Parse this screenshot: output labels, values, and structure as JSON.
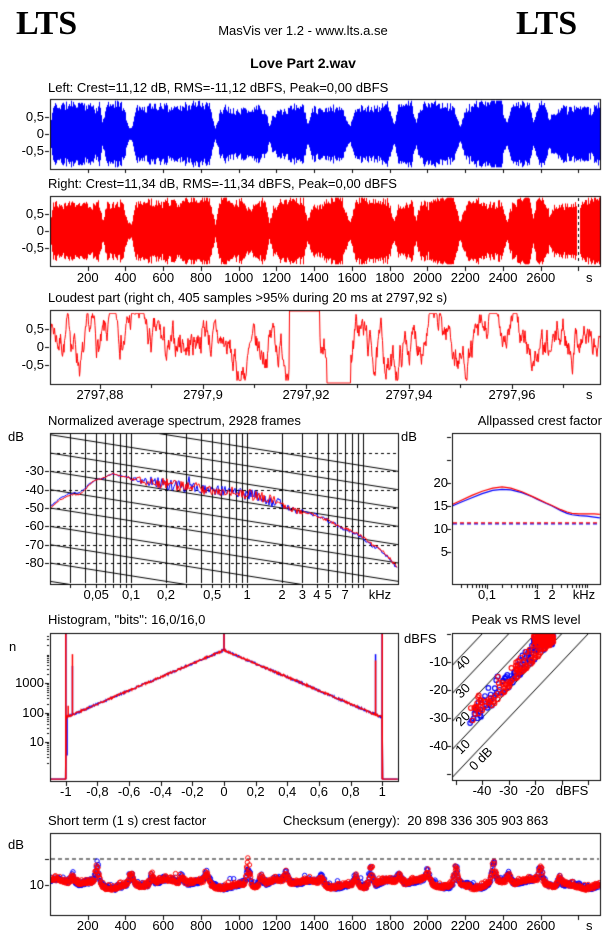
{
  "header": {
    "logo_left": "LTS",
    "logo_right": "LTS",
    "app_info": "MasVis ver 1.2 - www.lts.a.se",
    "title": "Love Part 2.wav"
  },
  "colors": {
    "left_channel": "#0000ff",
    "right_channel": "#ff0000",
    "axis": "#000000",
    "background": "#ffffff"
  },
  "units": {
    "db": "dB",
    "n": "n",
    "dbfs": "dBFS",
    "s": "s",
    "khz": "kHz"
  },
  "sections": {
    "left_wave": {
      "label": "Left: Crest=11,12 dB, RMS=-11,12 dBFS, Peak=0,00 dBFS"
    },
    "right_wave": {
      "label": "Right: Crest=11,34 dB, RMS=-11,34 dBFS, Peak=0,00 dBFS"
    },
    "loudest": {
      "title": "Loudest part (right ch, 405 samples >95% during 20 ms at 2797,92 s)"
    },
    "spectrum": {
      "title": "Normalized average spectrum, 2928 frames"
    },
    "allpassed": {
      "title": "Allpassed crest factor"
    },
    "histogram": {
      "title": "Histogram, \"bits\": 16,0/16,0"
    },
    "peak_rms": {
      "title": "Peak vs RMS level"
    },
    "short_term": {
      "title": "Short term (1 s) crest factor",
      "checksum": "Checksum (energy):  20 898 336 305 903 863"
    }
  },
  "axes": {
    "time": {
      "ticks": [
        200,
        400,
        600,
        800,
        1000,
        1200,
        1400,
        1600,
        1800,
        2000,
        2200,
        2400,
        2600
      ],
      "labels": [
        "200",
        "400",
        "600",
        "800",
        "1000",
        "1200",
        "1400",
        "1600",
        "1800",
        "2000",
        "2200",
        "2400",
        "2600"
      ],
      "extra_ticks": [
        2800
      ],
      "unit": "s",
      "max_s": 2914
    },
    "wave_y": {
      "ticks": [
        0.5,
        0,
        -0.5
      ],
      "labels": [
        "0,5",
        "0",
        "-0,5"
      ]
    },
    "loudest_x": {
      "ticks": [
        2797.88,
        2797.9,
        2797.92,
        2797.94,
        2797.96
      ],
      "labels": [
        "2797,88",
        "2797,9",
        "2797,92",
        "2797,94",
        "2797,96"
      ],
      "minor_step_s": 0.01,
      "unit": "s"
    },
    "spectrum_y": {
      "ticks": [
        -30,
        -40,
        -50,
        -60,
        -70,
        -80
      ],
      "labels": [
        "-30",
        "-40",
        "-50",
        "-60",
        "-70",
        "-80"
      ],
      "dashed_lines": [
        -20,
        -30,
        -40,
        -50,
        -60,
        -70,
        -80
      ]
    },
    "spectrum_x": {
      "ticks": [
        0.05,
        0.1,
        0.2,
        0.5,
        1,
        2,
        3,
        4,
        5,
        7
      ],
      "labels": [
        "0,05",
        "0,1",
        "0,2",
        "0,5",
        "1",
        "2",
        "3",
        "4",
        "5",
        "7"
      ],
      "grid": [
        0.03,
        0.04,
        0.05,
        0.06,
        0.07,
        0.08,
        0.09,
        0.1,
        0.2,
        0.3,
        0.4,
        0.5,
        0.6,
        0.7,
        0.8,
        0.9,
        1,
        2,
        3,
        4,
        5,
        6,
        7,
        8,
        9,
        10
      ],
      "unit": "kHz",
      "range_khz": [
        0.02,
        20
      ]
    },
    "allpassed_y": {
      "ticks": [
        20,
        15,
        10,
        5
      ],
      "labels": [
        "20",
        "15",
        "10",
        "5"
      ],
      "unlabeled_ticks": [
        30,
        25
      ]
    },
    "allpassed_x": {
      "ticks": [
        0.1,
        1,
        2
      ],
      "labels": [
        "0,1",
        "1",
        "2"
      ],
      "unit": "kHz",
      "minor": [
        0.03,
        0.04,
        0.05,
        0.06,
        0.07,
        0.08,
        0.09,
        0.1,
        0.2,
        0.3,
        0.4,
        0.5,
        0.6,
        0.7,
        0.8,
        0.9,
        1,
        2,
        3,
        4,
        5,
        6,
        7,
        8,
        9,
        10
      ]
    },
    "hist_y": {
      "ticks": [
        1000,
        100,
        10
      ],
      "labels": [
        "1000",
        "100",
        "10"
      ]
    },
    "hist_x": {
      "ticks": [
        -1,
        -0.8,
        -0.6,
        -0.4,
        -0.2,
        0,
        0.2,
        0.4,
        0.6,
        0.8,
        1
      ],
      "labels": [
        "-1",
        "-0,8",
        "-0,6",
        "-0,4",
        "-0,2",
        "0",
        "0,2",
        "0,4",
        "0,6",
        "0,8",
        "1"
      ]
    },
    "peak_y": {
      "ticks": [
        -10,
        -20,
        -30,
        -40
      ],
      "labels": [
        "-10",
        "-20",
        "-30",
        "-40"
      ],
      "unlabeled_ticks": [
        0,
        -50
      ]
    },
    "peak_x": {
      "ticks": [
        -40,
        -30,
        -20
      ],
      "labels": [
        "-40",
        "-30",
        "-20"
      ],
      "unlabeled_ticks": [
        -50,
        -10,
        0
      ],
      "unit": "dBFS"
    },
    "peak_diag": {
      "values": [
        40,
        30,
        20,
        10,
        0
      ],
      "labels": [
        "40",
        "30",
        "20",
        "10",
        "0 dB"
      ]
    },
    "short_y": {
      "ticks": [
        10
      ],
      "labels": [
        "10"
      ],
      "threshold_db": 15
    }
  },
  "chart_data": [
    {
      "type": "waveform",
      "channel": "left",
      "color": "#0000ff",
      "stats": {
        "crest_db": 11.12,
        "rms_dbfs": -11.12,
        "peak_dbfs": 0.0
      },
      "x_range_s": [
        0,
        2914
      ],
      "ylim": [
        -1.05,
        1.05
      ],
      "envelope": [
        [
          0,
          0.25
        ],
        [
          0.006,
          0.95
        ],
        [
          0.05,
          1
        ],
        [
          0.09,
          1
        ],
        [
          0.095,
          0.35
        ],
        [
          0.102,
          0.95
        ],
        [
          0.13,
          1
        ],
        [
          0.142,
          0.25
        ],
        [
          0.148,
          0.2
        ],
        [
          0.156,
          0.9
        ],
        [
          0.19,
          1
        ],
        [
          0.2,
          0.85
        ],
        [
          0.21,
          1
        ],
        [
          0.29,
          1
        ],
        [
          0.3,
          0.2
        ],
        [
          0.31,
          0.9
        ],
        [
          0.35,
          1
        ],
        [
          0.36,
          0.75
        ],
        [
          0.37,
          1
        ],
        [
          0.39,
          1
        ],
        [
          0.398,
          0.3
        ],
        [
          0.406,
          0.9
        ],
        [
          0.46,
          1
        ],
        [
          0.468,
          0.3
        ],
        [
          0.477,
          0.9
        ],
        [
          0.53,
          1
        ],
        [
          0.545,
          0.25
        ],
        [
          0.556,
          0.9
        ],
        [
          0.615,
          1
        ],
        [
          0.625,
          0.3
        ],
        [
          0.633,
          0.9
        ],
        [
          0.658,
          1
        ],
        [
          0.665,
          0.35
        ],
        [
          0.673,
          0.9
        ],
        [
          0.73,
          1
        ],
        [
          0.745,
          0.25
        ],
        [
          0.756,
          0.9
        ],
        [
          0.82,
          1
        ],
        [
          0.83,
          0.3
        ],
        [
          0.84,
          0.9
        ],
        [
          0.87,
          1
        ],
        [
          0.878,
          0.4
        ],
        [
          0.886,
          0.9
        ],
        [
          0.9,
          0.95
        ],
        [
          0.908,
          0.45
        ],
        [
          0.916,
          0.8
        ],
        [
          0.93,
          0.9
        ],
        [
          0.96,
          0.85
        ],
        [
          0.975,
          0.9
        ],
        [
          0.99,
          1
        ],
        [
          1,
          1
        ]
      ]
    },
    {
      "type": "waveform",
      "channel": "right",
      "color": "#ff0000",
      "stats": {
        "crest_db": 11.34,
        "rms_dbfs": -11.34,
        "peak_dbfs": 0.0
      },
      "x_range_s": [
        0,
        2914
      ],
      "ylim": [
        -1.05,
        1.05
      ],
      "marker_s": 2797.92,
      "envelope_ref": "left"
    },
    {
      "type": "line",
      "name": "loudest-part",
      "channel": "right",
      "color": "#ff0000",
      "window_s": [
        2797.87,
        2797.977
      ],
      "ylim": [
        -1.05,
        1.05
      ],
      "samples_over_95pct": 405,
      "window_ms": 20,
      "at_s": 2797.92,
      "clip_top_frac": [
        0.435,
        0.49
      ],
      "clip_bottom_frac": [
        0.503,
        0.547
      ]
    },
    {
      "type": "line",
      "name": "normalized-average-spectrum",
      "frames": 2928,
      "xlim_khz": [
        0.02,
        20
      ],
      "ylim_db": [
        -92,
        -9
      ],
      "diagonal_grid_db_per_decade": -10,
      "anchors_khz_db": [
        [
          0.02,
          -50
        ],
        [
          0.024,
          -46
        ],
        [
          0.028,
          -43.5
        ],
        [
          0.032,
          -42.5
        ],
        [
          0.036,
          -42.8
        ],
        [
          0.04,
          -40
        ],
        [
          0.045,
          -36.5
        ],
        [
          0.05,
          -34.5
        ],
        [
          0.06,
          -33.5
        ],
        [
          0.065,
          -31.8
        ],
        [
          0.07,
          -31.2
        ],
        [
          0.08,
          -32.5
        ],
        [
          0.09,
          -32.8
        ],
        [
          0.1,
          -33.8
        ],
        [
          0.12,
          -35
        ],
        [
          0.15,
          -36
        ],
        [
          0.2,
          -37
        ],
        [
          0.3,
          -38.5
        ],
        [
          0.4,
          -39.5
        ],
        [
          0.5,
          -40
        ],
        [
          0.7,
          -41
        ],
        [
          1,
          -42.5
        ],
        [
          1.3,
          -44
        ],
        [
          1.6,
          -46
        ],
        [
          2,
          -48.5
        ],
        [
          2.4,
          -50.5
        ],
        [
          2.8,
          -52
        ],
        [
          3.2,
          -52.5
        ],
        [
          4,
          -54
        ],
        [
          4.5,
          -55.5
        ],
        [
          5,
          -57
        ],
        [
          6,
          -59.5
        ],
        [
          7,
          -61
        ],
        [
          8,
          -62.5
        ],
        [
          9,
          -64
        ],
        [
          10,
          -66
        ],
        [
          11,
          -68
        ],
        [
          12,
          -70
        ],
        [
          13,
          -71
        ],
        [
          14,
          -72.5
        ],
        [
          15,
          -74
        ],
        [
          16,
          -75.5
        ],
        [
          17,
          -77.5
        ],
        [
          18,
          -79.5
        ],
        [
          19.5,
          -81.5
        ]
      ]
    },
    {
      "type": "line",
      "name": "allpassed-crest-factor",
      "xlim_khz": [
        0.02,
        20
      ],
      "ylim_db": [
        0,
        31
      ],
      "series": [
        {
          "name": "left",
          "color": "#0000ff",
          "threshold_db": 11.12,
          "points_khz_db": [
            [
              0.02,
              15.0
            ],
            [
              0.03,
              15.8
            ],
            [
              0.05,
              16.8
            ],
            [
              0.08,
              17.7
            ],
            [
              0.13,
              18.4
            ],
            [
              0.2,
              18.6
            ],
            [
              0.3,
              18.5
            ],
            [
              0.5,
              17.9
            ],
            [
              0.8,
              17.0
            ],
            [
              1,
              16.5
            ],
            [
              1.5,
              15.6
            ],
            [
              2,
              15.0
            ],
            [
              3,
              14.0
            ],
            [
              4,
              13.4
            ],
            [
              5,
              13.1
            ],
            [
              7,
              12.9
            ],
            [
              10,
              12.8
            ],
            [
              14,
              12.6
            ],
            [
              18,
              12.4
            ]
          ]
        },
        {
          "name": "right",
          "color": "#ff0000",
          "threshold_db": 11.34,
          "points_khz_db": [
            [
              0.02,
              15.3
            ],
            [
              0.03,
              16.2
            ],
            [
              0.05,
              17.3
            ],
            [
              0.08,
              18.2
            ],
            [
              0.13,
              18.9
            ],
            [
              0.2,
              19.15
            ],
            [
              0.3,
              18.9
            ],
            [
              0.5,
              18.1
            ],
            [
              0.8,
              17.1
            ],
            [
              1,
              16.6
            ],
            [
              1.5,
              15.7
            ],
            [
              2,
              15.1
            ],
            [
              3,
              14.2
            ],
            [
              4,
              13.7
            ],
            [
              5,
              13.4
            ],
            [
              7,
              13.3
            ],
            [
              10,
              13.3
            ],
            [
              14,
              13.3
            ],
            [
              18,
              13.2
            ]
          ]
        }
      ]
    },
    {
      "type": "line-histogram",
      "name": "sample-histogram",
      "bits_label": "16,0/16,0",
      "xlim": [
        -1.1,
        1.1
      ],
      "ylim_log_n": [
        0.55,
        49000
      ],
      "tent_model": "n(x) = 13000 * 10^(-2.28*|x|)",
      "tent_peak_n": 13000,
      "decades_per_unit": 2.28,
      "spikes_blue": [
        [
          -1,
          49000
        ],
        [
          1,
          49000
        ],
        [
          0,
          49000
        ],
        [
          -0.958,
          3800
        ],
        [
          0.958,
          9500
        ],
        [
          -0.992,
          3.5
        ]
      ],
      "spikes_red": [
        [
          -1,
          49000
        ],
        [
          1,
          49000
        ],
        [
          0,
          49000
        ],
        [
          -0.958,
          9500
        ],
        [
          0.958,
          5800
        ],
        [
          -0.985,
          170
        ]
      ]
    },
    {
      "type": "scatter",
      "name": "peak-vs-rms",
      "xlim_dbfs": [
        -51,
        4.5
      ],
      "ylim_dbfs": [
        -52,
        0.5
      ],
      "crest_diagonals_db": [
        0,
        10,
        20,
        30,
        40
      ],
      "distribution": {
        "rms_range_dbfs": [
          -46,
          -13
        ],
        "crest_range_db": [
          10.5,
          19
        ],
        "dense_cluster": {
          "rms": [
            -20.5,
            -13
          ],
          "peak": [
            -4.2,
            -0.7
          ]
        }
      }
    },
    {
      "type": "scatter",
      "name": "short-term-crest",
      "x_range_s": [
        0,
        2914
      ],
      "ylim_db": [
        4,
        20
      ],
      "threshold_db": 15,
      "baseline_mean_db": 10.0,
      "baseline_spread_db": 1.1,
      "bursts_s_amp": [
        [
          120,
          2.0
        ],
        [
          250,
          4.6
        ],
        [
          430,
          2.6
        ],
        [
          540,
          2.4
        ],
        [
          700,
          1.8
        ],
        [
          830,
          2.6
        ],
        [
          1050,
          5.0
        ],
        [
          1120,
          2.6
        ],
        [
          1250,
          2.0
        ],
        [
          1440,
          2.0
        ],
        [
          1620,
          2.4
        ],
        [
          1700,
          4.6
        ],
        [
          1850,
          2.0
        ],
        [
          2000,
          2.6
        ],
        [
          2150,
          4.6
        ],
        [
          2350,
          4.4
        ],
        [
          2430,
          2.0
        ],
        [
          2600,
          3.4
        ],
        [
          2700,
          2.2
        ]
      ]
    }
  ]
}
